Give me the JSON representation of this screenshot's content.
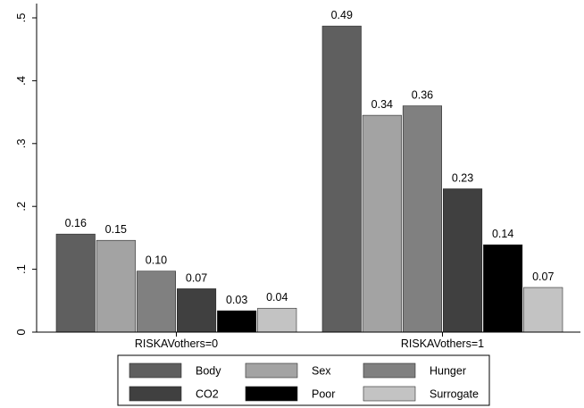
{
  "chart_data": {
    "type": "bar",
    "categories": [
      "RISKAVothers=0",
      "RISKAVothers=1"
    ],
    "series": [
      {
        "name": "Body",
        "values": [
          0.156,
          0.487
        ],
        "labels": [
          "0.16",
          "0.49"
        ],
        "color": "#5f5f5f"
      },
      {
        "name": "Sex",
        "values": [
          0.146,
          0.345
        ],
        "labels": [
          "0.15",
          "0.34"
        ],
        "color": "#a3a3a3"
      },
      {
        "name": "Hunger",
        "values": [
          0.097,
          0.36
        ],
        "labels": [
          "0.10",
          "0.36"
        ],
        "color": "#808080"
      },
      {
        "name": "CO2",
        "values": [
          0.069,
          0.228
        ],
        "labels": [
          "0.07",
          "0.23"
        ],
        "color": "#404040"
      },
      {
        "name": "Poor",
        "values": [
          0.034,
          0.139
        ],
        "labels": [
          "0.03",
          "0.14"
        ],
        "color": "#000000"
      },
      {
        "name": "Surrogate",
        "values": [
          0.038,
          0.071
        ],
        "labels": [
          "0.04",
          "0.07"
        ],
        "color": "#c3c3c3"
      }
    ],
    "yticks": [
      0,
      0.1,
      0.2,
      0.3,
      0.4,
      0.5
    ],
    "ytick_labels": [
      "0",
      ".1",
      ".2",
      ".3",
      ".4",
      ".5"
    ],
    "ylim": [
      0,
      0.5
    ],
    "title": "",
    "xlabel": "",
    "ylabel": "",
    "grid": false,
    "legend_position": "bottom"
  }
}
